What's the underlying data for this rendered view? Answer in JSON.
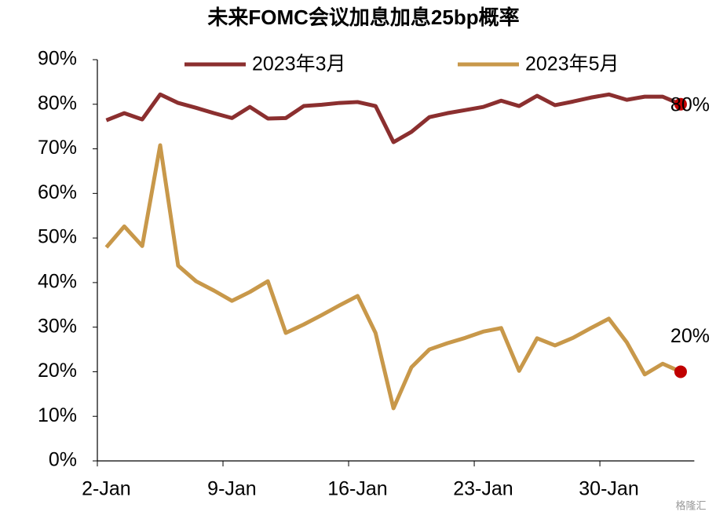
{
  "chart_data": {
    "type": "line",
    "title": "未来FOMC会议加息加息25bp概率",
    "categories": [
      "2-Jan",
      null,
      null,
      null,
      null,
      null,
      null,
      "9-Jan",
      null,
      null,
      null,
      null,
      null,
      null,
      "16-Jan",
      null,
      null,
      null,
      null,
      null,
      null,
      "23-Jan",
      null,
      null,
      null,
      null,
      null,
      null,
      "30-Jan",
      null,
      null,
      null,
      null
    ],
    "series": [
      {
        "name": "2023年3月",
        "color": "#8b2f2f",
        "values": [
          76.4,
          78,
          76.6,
          82.2,
          80.3,
          79.2,
          78,
          76.9,
          79.4,
          76.8,
          76.9,
          79.6,
          79.9,
          80.3,
          80.5,
          79.6,
          71.5,
          73.8,
          77.1,
          78,
          78.7,
          79.4,
          80.8,
          79.6,
          81.9,
          79.8,
          80.6,
          81.5,
          82.2,
          81,
          81.7,
          81.7,
          80
        ],
        "value_labels": [
          null,
          null,
          null,
          null,
          null,
          null,
          null,
          null,
          null,
          null,
          null,
          null,
          null,
          null,
          null,
          null,
          null,
          null,
          null,
          null,
          null,
          null,
          null,
          null,
          null,
          null,
          null,
          null,
          null,
          null,
          null,
          null,
          "80%"
        ]
      },
      {
        "name": "2023年5月",
        "color": "#c8984a",
        "values": [
          47.9,
          52.6,
          48.2,
          70.8,
          43.8,
          40.3,
          38.2,
          35.9,
          37.9,
          40.3,
          28.7,
          30.6,
          32.7,
          34.9,
          37,
          28.7,
          11.8,
          21,
          25,
          26.4,
          27.6,
          29,
          29.8,
          20.2,
          27.5,
          25.9,
          27.6,
          29.8,
          31.9,
          26.6,
          19.4,
          21.8,
          20
        ],
        "value_labels": [
          null,
          null,
          null,
          null,
          null,
          null,
          null,
          null,
          null,
          null,
          null,
          null,
          null,
          null,
          null,
          null,
          null,
          null,
          null,
          null,
          null,
          null,
          null,
          null,
          null,
          null,
          null,
          null,
          null,
          null,
          null,
          null,
          "20%"
        ]
      }
    ],
    "end_marker_color": "#c00000",
    "ylim": [
      0,
      90
    ],
    "yticks": [
      {
        "value": 0,
        "label": "0%"
      },
      {
        "value": 10,
        "label": "10%"
      },
      {
        "value": 20,
        "label": "20%"
      },
      {
        "value": 30,
        "label": "30%"
      },
      {
        "value": 40,
        "label": "40%"
      },
      {
        "value": 50,
        "label": "50%"
      },
      {
        "value": 60,
        "label": "60%"
      },
      {
        "value": 70,
        "label": "70%"
      },
      {
        "value": 80,
        "label": "80%"
      },
      {
        "value": 90,
        "label": "90%"
      }
    ],
    "grid": false,
    "legend": "top",
    "watermark": "格隆汇"
  }
}
